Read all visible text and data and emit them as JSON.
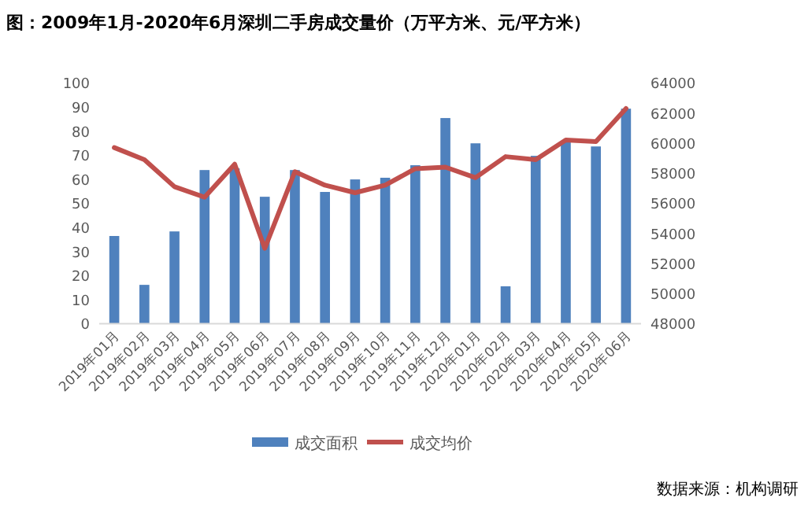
{
  "chart_data": {
    "type": "bar",
    "title": "图：2009年1月-2020年6月深圳二手房成交量价（万平方米、元/平方米）",
    "categories": [
      "2019年01月",
      "2019年02月",
      "2019年03月",
      "2019年04月",
      "2019年05月",
      "2019年06月",
      "2019年07月",
      "2019年08月",
      "2019年09月",
      "2019年10月",
      "2019年11月",
      "2019年12月",
      "2020年01月",
      "2020年02月",
      "2020年03月",
      "2020年04月",
      "2020年05月",
      "2020年06月"
    ],
    "series": [
      {
        "name": "成交面积",
        "color": "#4f81bd",
        "values": [
          36.4,
          16.1,
          38.3,
          63.8,
          64.5,
          52.7,
          63.8,
          54.7,
          59.9,
          60.6,
          65.8,
          85.4,
          74.9,
          15.5,
          69.7,
          75.6,
          73.6,
          89.3
        ]
      },
      {
        "name": "成交均价",
        "color": "#c0504d",
        "type": "line",
        "axis": "y2",
        "values": [
          59700,
          58900,
          57100,
          56400,
          58600,
          53000,
          58100,
          57200,
          56700,
          57200,
          58300,
          58400,
          57700,
          59100,
          58900,
          60200,
          60100,
          62300
        ]
      }
    ],
    "ylim": [
      0,
      100
    ],
    "yticks": [
      0,
      10,
      20,
      30,
      40,
      50,
      60,
      70,
      80,
      90,
      100
    ],
    "y2lim": [
      48000,
      64000
    ],
    "y2ticks": [
      48000,
      50000,
      52000,
      54000,
      56000,
      58000,
      60000,
      62000,
      64000
    ],
    "legend": "bottom",
    "annotations": [
      "数据来源：机构调研"
    ]
  }
}
